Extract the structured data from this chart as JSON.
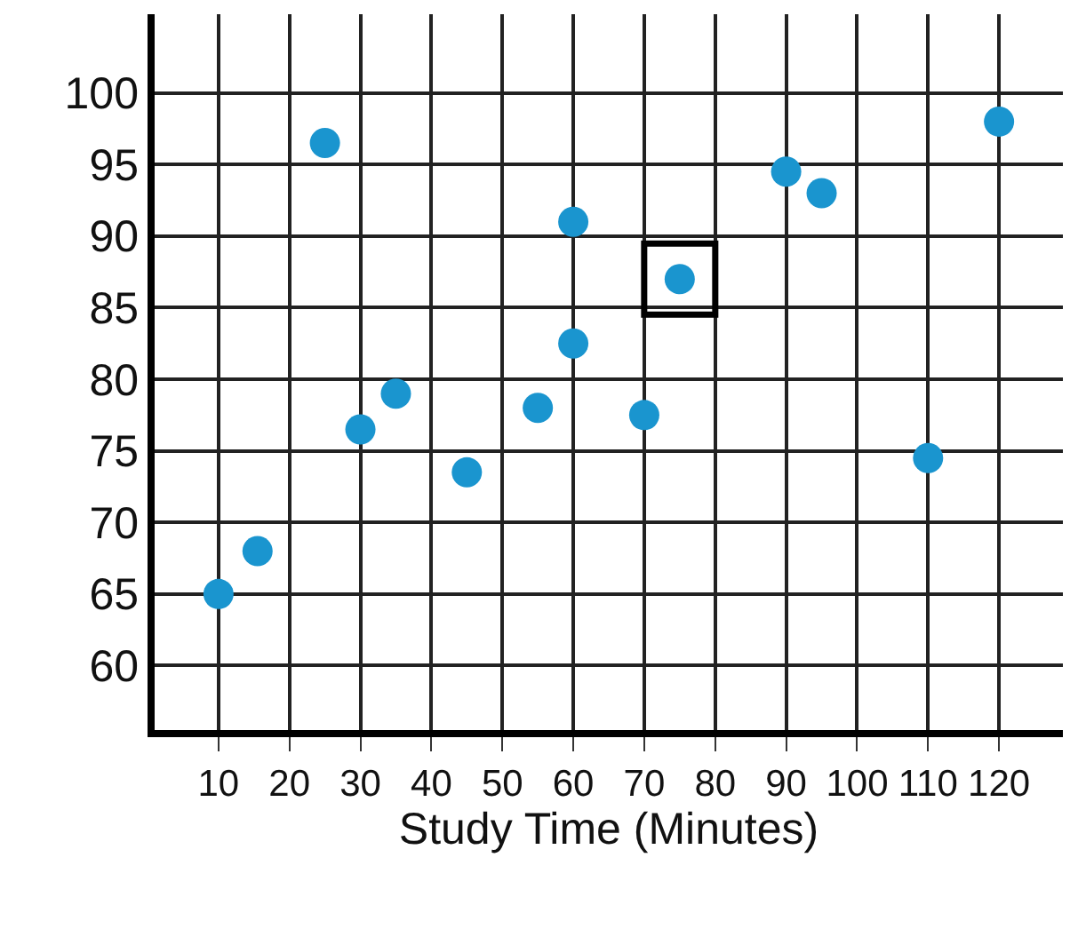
{
  "chart_data": {
    "type": "scatter",
    "xlabel": "Study Time (Minutes)",
    "xlim": [
      1,
      129
    ],
    "ylim": [
      55.5,
      105.5
    ],
    "xticks": [
      10,
      20,
      30,
      40,
      50,
      60,
      70,
      80,
      90,
      100,
      110,
      120
    ],
    "yticks": [
      60,
      65,
      70,
      75,
      80,
      85,
      90,
      95,
      100
    ],
    "grid": true,
    "marker": "circle",
    "series": [
      {
        "color": "#1a95cf",
        "x": [
          10,
          15.5,
          25,
          30,
          35,
          45,
          55,
          60,
          60,
          70,
          75,
          90,
          95,
          110,
          120
        ],
        "values": [
          65,
          68,
          96.5,
          76.5,
          79,
          73.5,
          78,
          91,
          82.5,
          77.5,
          87,
          94.5,
          93,
          74.5,
          98
        ]
      },
      {
        "color": "#000000",
        "marker": "square",
        "x": [
          75
        ],
        "values": [
          87
        ]
      }
    ]
  }
}
